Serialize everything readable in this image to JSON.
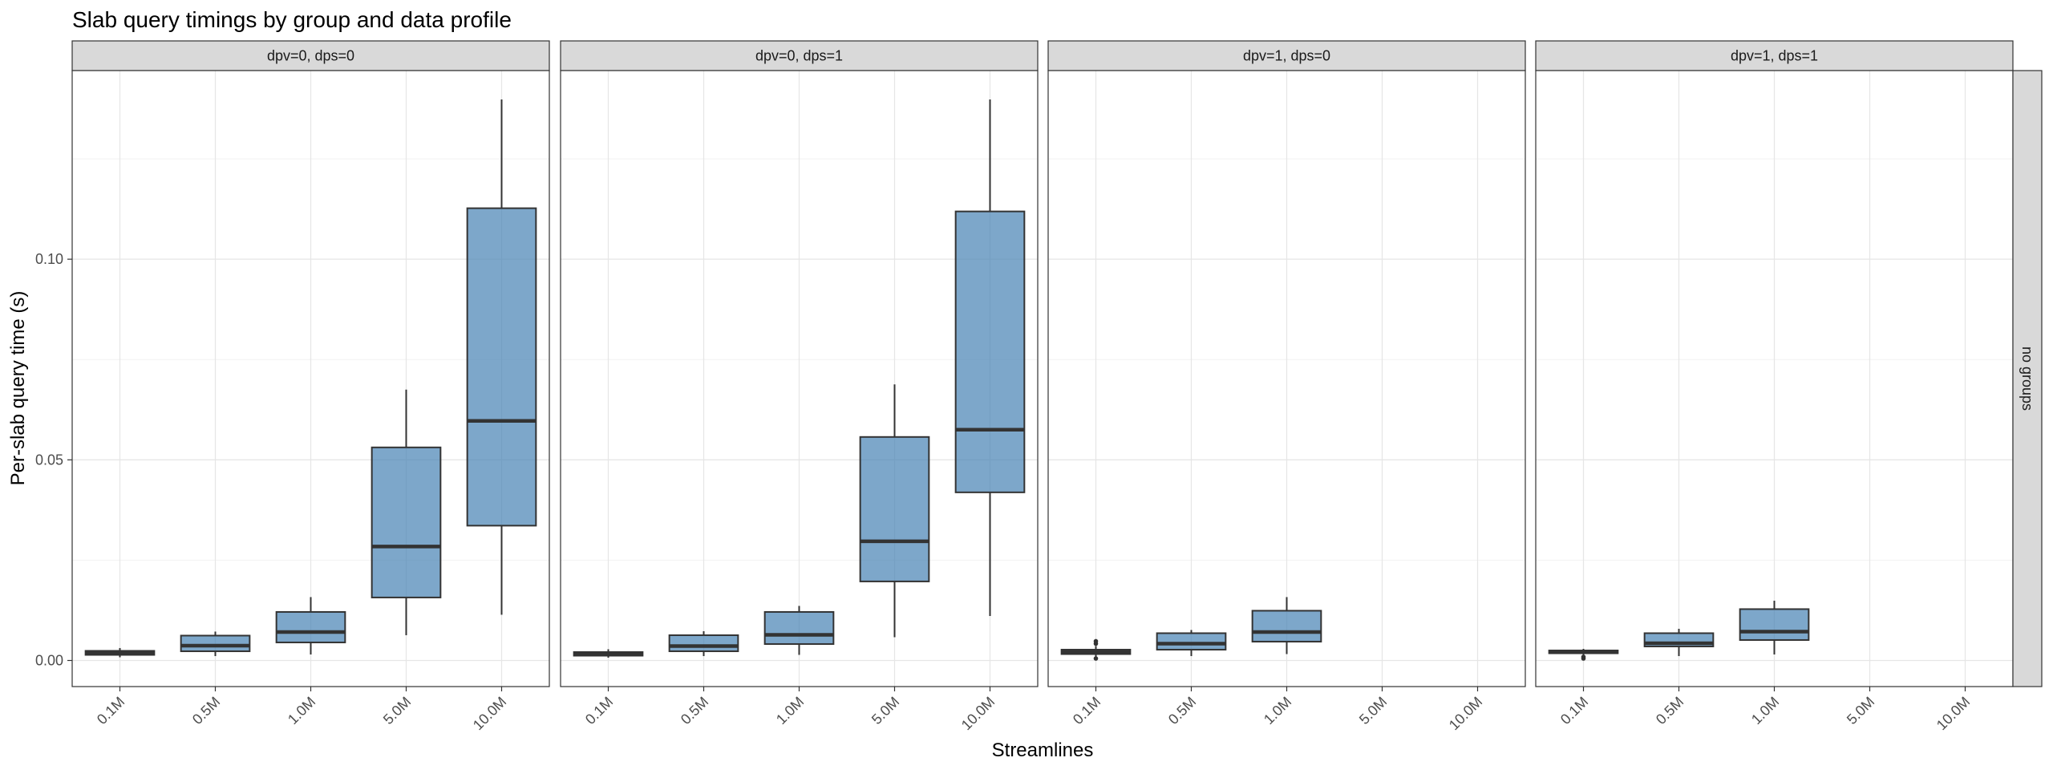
{
  "chart_data": {
    "type": "boxplot",
    "title": "Slab query timings by group and data profile",
    "xlabel": "Streamlines",
    "ylabel": "Per-slab query time (s)",
    "ylim": [
      -0.0065,
      0.147
    ],
    "y_ticks": [
      0.0,
      0.05,
      0.1
    ],
    "y_tick_labels": [
      "0.00",
      "0.05",
      "0.10"
    ],
    "categories": [
      "0.1M",
      "0.5M",
      "1.0M",
      "5.0M",
      "10.0M"
    ],
    "row_strip": "no groups",
    "grid": true,
    "fill_color": "#4682B4",
    "fill_opacity": 0.7,
    "line_color": "#333333",
    "panels": [
      {
        "label": "dpv=0, dps=0",
        "boxes": [
          {
            "x": "0.1M",
            "min": 0.0008,
            "q1": 0.0014,
            "median": 0.0018,
            "q3": 0.0024,
            "max": 0.0031,
            "outliers": []
          },
          {
            "x": "0.5M",
            "min": 0.0011,
            "q1": 0.0023,
            "median": 0.0037,
            "q3": 0.0062,
            "max": 0.0072,
            "outliers": []
          },
          {
            "x": "1.0M",
            "min": 0.0015,
            "q1": 0.0045,
            "median": 0.0071,
            "q3": 0.0121,
            "max": 0.0158,
            "outliers": []
          },
          {
            "x": "5.0M",
            "min": 0.0063,
            "q1": 0.0157,
            "median": 0.0284,
            "q3": 0.0531,
            "max": 0.0675,
            "outliers": []
          },
          {
            "x": "10.0M",
            "min": 0.0114,
            "q1": 0.0336,
            "median": 0.0597,
            "q3": 0.1127,
            "max": 0.1398,
            "outliers": []
          }
        ]
      },
      {
        "label": "dpv=0, dps=1",
        "boxes": [
          {
            "x": "0.1M",
            "min": 0.0007,
            "q1": 0.0012,
            "median": 0.0016,
            "q3": 0.0021,
            "max": 0.0028,
            "outliers": []
          },
          {
            "x": "0.5M",
            "min": 0.0011,
            "q1": 0.0023,
            "median": 0.0036,
            "q3": 0.0063,
            "max": 0.0073,
            "outliers": []
          },
          {
            "x": "1.0M",
            "min": 0.0014,
            "q1": 0.0041,
            "median": 0.0064,
            "q3": 0.0121,
            "max": 0.0136,
            "outliers": []
          },
          {
            "x": "5.0M",
            "min": 0.0058,
            "q1": 0.0197,
            "median": 0.0297,
            "q3": 0.0557,
            "max": 0.0688,
            "outliers": []
          },
          {
            "x": "10.0M",
            "min": 0.0111,
            "q1": 0.0419,
            "median": 0.0575,
            "q3": 0.1119,
            "max": 0.1398,
            "outliers": []
          }
        ]
      },
      {
        "label": "dpv=1, dps=0",
        "boxes": [
          {
            "x": "0.1M",
            "min": 0.0007,
            "q1": 0.0016,
            "median": 0.0021,
            "q3": 0.0027,
            "max": 0.0036,
            "outliers": [
              0.0042,
              0.0048,
              0.0005
            ]
          },
          {
            "x": "0.5M",
            "min": 0.0011,
            "q1": 0.0027,
            "median": 0.0042,
            "q3": 0.0068,
            "max": 0.0076,
            "outliers": []
          },
          {
            "x": "1.0M",
            "min": 0.0016,
            "q1": 0.0047,
            "median": 0.0071,
            "q3": 0.0124,
            "max": 0.0158,
            "outliers": []
          }
        ]
      },
      {
        "label": "dpv=1, dps=1",
        "boxes": [
          {
            "x": "0.1M",
            "min": 0.0014,
            "q1": 0.0018,
            "median": 0.0021,
            "q3": 0.0025,
            "max": 0.0029,
            "outliers": [
              0.0005,
              0.0009
            ]
          },
          {
            "x": "0.5M",
            "min": 0.0011,
            "q1": 0.0035,
            "median": 0.0043,
            "q3": 0.0068,
            "max": 0.0079,
            "outliers": []
          },
          {
            "x": "1.0M",
            "min": 0.0015,
            "q1": 0.0051,
            "median": 0.0072,
            "q3": 0.0128,
            "max": 0.0149,
            "outliers": []
          }
        ]
      }
    ]
  }
}
